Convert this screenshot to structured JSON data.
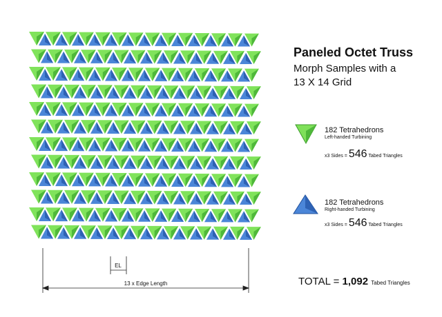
{
  "header": {
    "title": "Paneled Octet Truss",
    "subtitle": [
      "Morph Samples with a",
      "13 X 14 Grid"
    ]
  },
  "groups": [
    {
      "count": "182",
      "unit": "Tetrahedrons",
      "kind": "Left-handed Turbining",
      "sides": "x3 Sides =",
      "triangles": "546",
      "triangles_label": "Tabed Triangles"
    },
    {
      "count": "182",
      "unit": "Tetrahedrons",
      "kind": "Right-handed Turbining",
      "sides": "x3 Sides =",
      "triangles": "546",
      "triangles_label": "Tabed Triangles"
    }
  ],
  "total": {
    "label": "TOTAL =",
    "value": "1,092",
    "unit": "Tabed Triangles"
  },
  "dimensions": {
    "edge": "EL",
    "width": "13 x Edge Length"
  }
}
